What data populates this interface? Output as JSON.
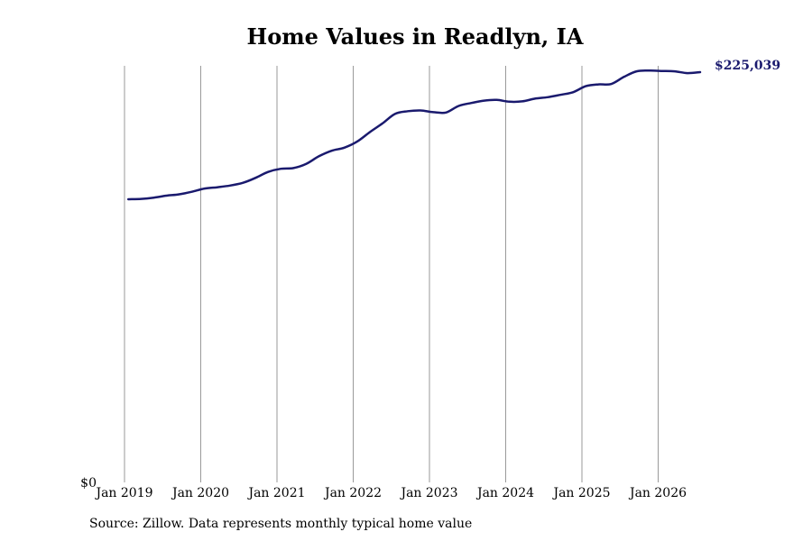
{
  "chart_data": {
    "type": "line",
    "title": "Home Values in Readlyn, IA",
    "xlabel": "",
    "ylabel": "",
    "x_tick_labels": [
      "Jan 2019",
      "Jan 2020",
      "Jan 2021",
      "Jan 2022",
      "Jan 2023",
      "Jan 2024",
      "Jan 2025",
      "Jan 2026"
    ],
    "y_tick_labels": [
      "$0"
    ],
    "ylim": [
      0,
      230000
    ],
    "grid": "vertical",
    "end_label": "$225,039",
    "line_color": "#1a1a6e",
    "series": [
      {
        "x": [
          "2019-01",
          "2019-03",
          "2019-05",
          "2019-07",
          "2019-09",
          "2019-11",
          "2020-01",
          "2020-03",
          "2020-05",
          "2020-07",
          "2020-09",
          "2020-11",
          "2021-01",
          "2021-03",
          "2021-05",
          "2021-07",
          "2021-09",
          "2021-11",
          "2022-01",
          "2022-03",
          "2022-05",
          "2022-07",
          "2022-09",
          "2022-11",
          "2023-01",
          "2023-03",
          "2023-05",
          "2023-07",
          "2023-09",
          "2023-11",
          "2024-01",
          "2024-03",
          "2024-05",
          "2024-07",
          "2024-09",
          "2024-11",
          "2025-01",
          "2025-03",
          "2025-05",
          "2025-07",
          "2025-09",
          "2025-11",
          "2026-01",
          "2026-03",
          "2026-05",
          "2026-07"
        ],
        "values": [
          155300,
          155500,
          156200,
          157300,
          158000,
          159400,
          161200,
          161900,
          162800,
          164300,
          167000,
          170300,
          172000,
          172400,
          174700,
          178900,
          181900,
          183600,
          186900,
          192100,
          196900,
          202200,
          203600,
          204000,
          203100,
          202900,
          206500,
          208100,
          209400,
          209800,
          208800,
          209000,
          210500,
          211300,
          212600,
          214000,
          217300,
          218300,
          218500,
          222400,
          225500,
          225900,
          225700,
          225500,
          224500,
          225039
        ]
      }
    ]
  },
  "source": "Source: Zillow. Data represents monthly typical home value"
}
